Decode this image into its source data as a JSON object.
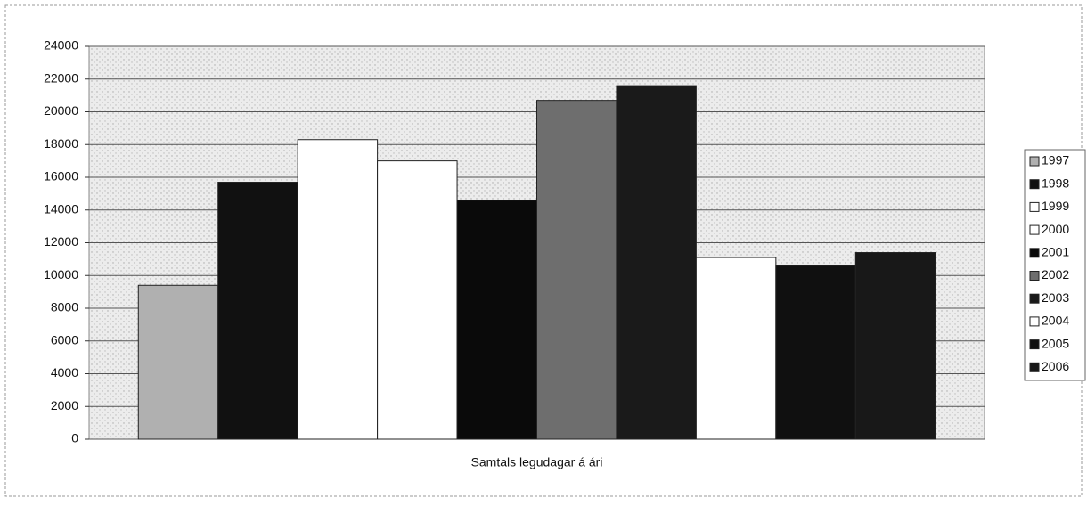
{
  "chart_data": {
    "type": "bar",
    "categories": [
      "Samtals legudagar á ári"
    ],
    "series": [
      {
        "name": "1997",
        "color": "#b0b0b0",
        "values": [
          9400
        ]
      },
      {
        "name": "1998",
        "color": "#111111",
        "values": [
          15700
        ]
      },
      {
        "name": "1999",
        "color": "#ffffff",
        "values": [
          18300
        ]
      },
      {
        "name": "2000",
        "color": "#ffffff",
        "values": [
          17000
        ]
      },
      {
        "name": "2001",
        "color": "#0a0a0a",
        "values": [
          14600
        ]
      },
      {
        "name": "2002",
        "color": "#6e6e6e",
        "values": [
          20700
        ]
      },
      {
        "name": "2003",
        "color": "#1a1a1a",
        "values": [
          21600
        ]
      },
      {
        "name": "2004",
        "color": "#ffffff",
        "values": [
          11100
        ]
      },
      {
        "name": "2005",
        "color": "#101010",
        "values": [
          10600
        ]
      },
      {
        "name": "2006",
        "color": "#181818",
        "values": [
          11400
        ]
      }
    ],
    "ylim": [
      0,
      24000
    ],
    "yticks": [
      0,
      2000,
      4000,
      6000,
      8000,
      10000,
      12000,
      14000,
      16000,
      18000,
      20000,
      22000,
      24000
    ],
    "grid": true,
    "legend": "right"
  }
}
